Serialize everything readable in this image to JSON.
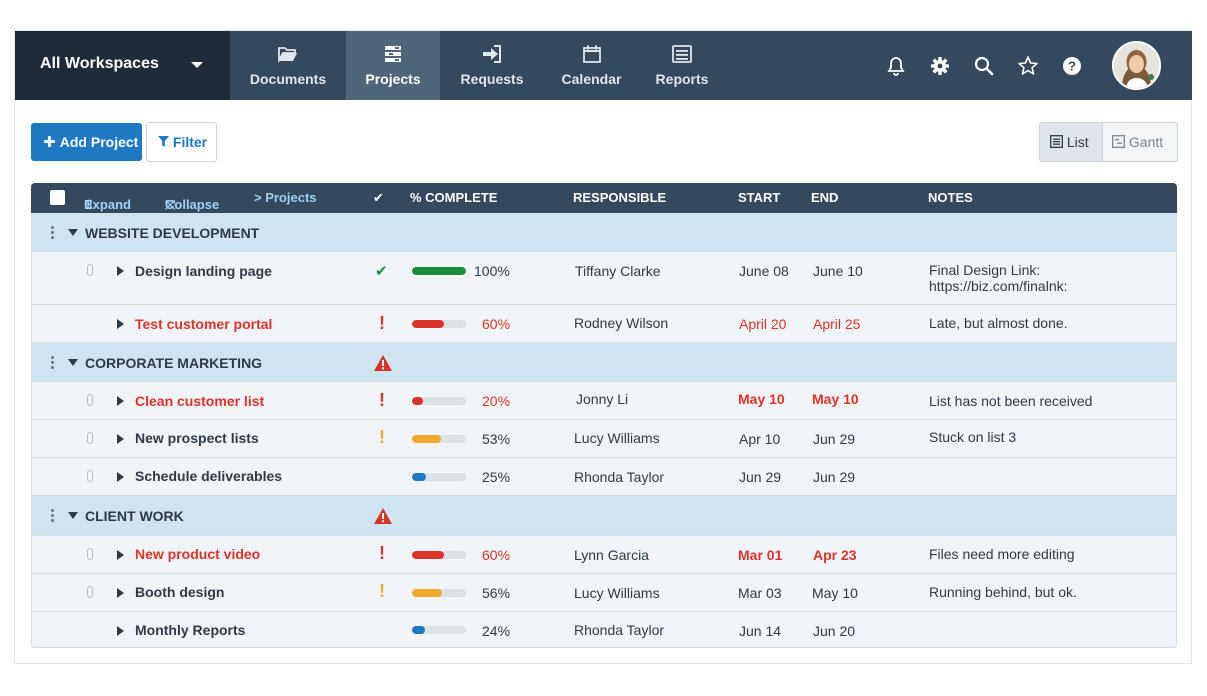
{
  "workspace": {
    "label": "All Workspaces"
  },
  "nav": {
    "tabs": [
      {
        "label": "Documents",
        "icon": "folder-open-icon"
      },
      {
        "label": "Projects",
        "icon": "projects-icon",
        "active": true
      },
      {
        "label": "Requests",
        "icon": "sign-in-icon"
      },
      {
        "label": "Calendar",
        "icon": "calendar-icon"
      },
      {
        "label": "Reports",
        "icon": "list-icon"
      }
    ],
    "tools": [
      "bell-icon",
      "gear-icon",
      "search-icon",
      "star-icon",
      "help-icon"
    ]
  },
  "toolbar": {
    "add_label": "Add Project",
    "filter_label": "Filter",
    "view_list": "List",
    "view_gantt": "Gantt"
  },
  "table": {
    "headers": {
      "expand": "Expand",
      "collapse": "Collapse",
      "projects": "> Projects",
      "complete": "% COMPLETE",
      "responsible": "RESPONSIBLE",
      "start": "START",
      "end": "END",
      "notes": "NOTES"
    },
    "groups": [
      {
        "name": "WEBSITE DEVELOPMENT",
        "warning": false,
        "tasks": [
          {
            "name": "Design landing page",
            "late": false,
            "status": "done",
            "percent": 100,
            "percent_label": "100%",
            "bar_color": "#1a8d3c",
            "responsible": "Tiffany Clarke",
            "start": "June 08",
            "end": "June 10",
            "start_late": false,
            "end_late": false,
            "notes": [
              "Final Design Link:",
              "https://biz.com/finalnk:"
            ],
            "attachment": true
          },
          {
            "name": "Test customer portal",
            "late": true,
            "status": "late",
            "percent": 60,
            "percent_label": "60%",
            "bar_color": "#d9342b",
            "responsible": "Rodney Wilson",
            "start": "April 20",
            "end": "April 25",
            "start_late": true,
            "end_late": true,
            "notes": [
              "Late, but almost done."
            ],
            "attachment": false
          }
        ]
      },
      {
        "name": "CORPORATE MARKETING",
        "warning": true,
        "tasks": [
          {
            "name": "Clean customer list",
            "late": true,
            "status": "late",
            "percent": 20,
            "percent_label": "20%",
            "bar_color": "#d9342b",
            "responsible": "Jonny Li",
            "start": "May 10",
            "end": "May 10",
            "start_late": true,
            "end_late": true,
            "notes": [
              "List has not been received"
            ],
            "attachment": true
          },
          {
            "name": "New prospect lists",
            "late": false,
            "status": "risk",
            "percent": 53,
            "percent_label": "53%",
            "bar_color": "#f0a830",
            "responsible": "Lucy Williams",
            "start": "Apr 10",
            "end": "Jun 29",
            "start_late": false,
            "end_late": false,
            "notes": [
              "Stuck on list 3"
            ],
            "attachment": true
          },
          {
            "name": "Schedule deliverables",
            "late": false,
            "status": "",
            "percent": 25,
            "percent_label": "25%",
            "bar_color": "#1e78c2",
            "responsible": "Rhonda Taylor",
            "start": "Jun 29",
            "end": "Jun 29",
            "start_late": false,
            "end_late": false,
            "notes": [
              ""
            ],
            "attachment": true
          }
        ]
      },
      {
        "name": "CLIENT WORK",
        "warning": true,
        "tasks": [
          {
            "name": "New product video",
            "late": true,
            "status": "late",
            "percent": 60,
            "percent_label": "60%",
            "bar_color": "#d9342b",
            "responsible": "Lynn Garcia",
            "start": "Mar 01",
            "end": "Apr 23",
            "start_late": true,
            "end_late": true,
            "notes": [
              "Files need more editing"
            ],
            "attachment": true
          },
          {
            "name": "Booth design",
            "late": false,
            "status": "risk",
            "percent": 56,
            "percent_label": "56%",
            "bar_color": "#f0a830",
            "responsible": "Lucy Williams",
            "start": "Mar 03",
            "end": "May 10",
            "start_late": false,
            "end_late": false,
            "notes": [
              "Running behind, but ok."
            ],
            "attachment": true
          },
          {
            "name": "Monthly Reports",
            "late": false,
            "status": "",
            "percent": 24,
            "percent_label": "24%",
            "bar_color": "#1e78c2",
            "responsible": "Rhonda Taylor",
            "start": "Jun 14",
            "end": "Jun 20",
            "start_late": false,
            "end_late": false,
            "notes": [
              ""
            ],
            "attachment": false
          }
        ]
      }
    ]
  }
}
